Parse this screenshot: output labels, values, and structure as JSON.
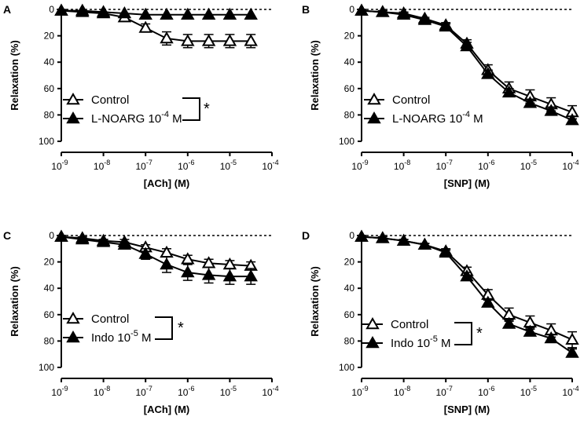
{
  "chart_data": [
    {
      "type": "line",
      "panel": "A",
      "xlabel": "[ACh] (M)",
      "ylabel": "Relaxation (%)",
      "xscale": "log",
      "xlim_exp": [
        -9,
        -4
      ],
      "ylim": [
        0,
        100
      ],
      "y_inverted": true,
      "yticks": [
        "0",
        "20",
        "40",
        "60",
        "80",
        "100"
      ],
      "xticks": [
        {
          "base": "10",
          "exp": "-9"
        },
        {
          "base": "10",
          "exp": "-8"
        },
        {
          "base": "10",
          "exp": "-7"
        },
        {
          "base": "10",
          "exp": "-6"
        },
        {
          "base": "10",
          "exp": "-5"
        },
        {
          "base": "10",
          "exp": "-4"
        }
      ],
      "x_log": [
        -9,
        -8.5,
        -8,
        -7.5,
        -7,
        -6.5,
        -6,
        -5.5,
        -5,
        -4.5
      ],
      "legend_position": "lower-left",
      "significance": "*",
      "series": [
        {
          "name": "Control",
          "name_parts": [
            "Control",
            "",
            ""
          ],
          "marker": "open-triangle",
          "values": [
            1,
            2,
            3,
            6,
            14,
            22,
            24,
            24,
            24,
            24
          ],
          "errors": [
            1,
            1,
            1,
            2,
            3,
            5,
            5,
            5,
            5,
            5
          ]
        },
        {
          "name": "L-NOARG 10-4 M",
          "name_parts": [
            "L-NOARG 10",
            "-4",
            " M"
          ],
          "marker": "filled-triangle",
          "values": [
            1,
            1,
            2,
            3,
            4,
            4,
            4,
            4,
            4,
            4
          ],
          "errors": [
            0.5,
            0.5,
            0.5,
            0.5,
            0.5,
            0.5,
            0.5,
            0.5,
            0.5,
            0.5
          ]
        }
      ]
    },
    {
      "type": "line",
      "panel": "B",
      "xlabel": "[SNP] (M)",
      "ylabel": "Relaxation (%)",
      "xscale": "log",
      "xlim_exp": [
        -9,
        -4
      ],
      "ylim": [
        0,
        100
      ],
      "y_inverted": true,
      "yticks": [
        "0",
        "20",
        "40",
        "60",
        "80",
        "100"
      ],
      "xticks": [
        {
          "base": "10",
          "exp": "-9"
        },
        {
          "base": "10",
          "exp": "-8"
        },
        {
          "base": "10",
          "exp": "-7"
        },
        {
          "base": "10",
          "exp": "-6"
        },
        {
          "base": "10",
          "exp": "-5"
        },
        {
          "base": "10",
          "exp": "-4"
        }
      ],
      "x_log": [
        -9,
        -8.5,
        -8,
        -7.5,
        -7,
        -6.5,
        -6,
        -5.5,
        -5,
        -4.5,
        -4
      ],
      "legend_position": "lower-left",
      "significance": "",
      "series": [
        {
          "name": "Control",
          "name_parts": [
            "Control",
            "",
            ""
          ],
          "marker": "open-triangle",
          "values": [
            1,
            2,
            3,
            7,
            12,
            26,
            46,
            60,
            66,
            72,
            78
          ],
          "errors": [
            1,
            1,
            1,
            1,
            2,
            3,
            4,
            5,
            5,
            5,
            5
          ]
        },
        {
          "name": "L-NOARG 10-4 M",
          "name_parts": [
            "L-NOARG 10",
            "-4",
            " M"
          ],
          "marker": "filled-triangle",
          "values": [
            1,
            2,
            4,
            8,
            13,
            28,
            49,
            63,
            71,
            77,
            84
          ],
          "errors": [
            1,
            1,
            1,
            1,
            2,
            3,
            3,
            3,
            3,
            3,
            3
          ]
        }
      ]
    },
    {
      "type": "line",
      "panel": "C",
      "xlabel": "[ACh] (M)",
      "ylabel": "Relaxation (%)",
      "xscale": "log",
      "xlim_exp": [
        -9,
        -4
      ],
      "ylim": [
        0,
        100
      ],
      "y_inverted": true,
      "yticks": [
        "0",
        "20",
        "40",
        "60",
        "80",
        "100"
      ],
      "xticks": [
        {
          "base": "10",
          "exp": "-9"
        },
        {
          "base": "10",
          "exp": "-8"
        },
        {
          "base": "10",
          "exp": "-7"
        },
        {
          "base": "10",
          "exp": "-6"
        },
        {
          "base": "10",
          "exp": "-5"
        },
        {
          "base": "10",
          "exp": "-4"
        }
      ],
      "x_log": [
        -9,
        -8.5,
        -8,
        -7.5,
        -7,
        -6.5,
        -6,
        -5.5,
        -5,
        -4.5
      ],
      "legend_position": "lower-left",
      "significance": "*",
      "series": [
        {
          "name": "Control",
          "name_parts": [
            "Control",
            "",
            ""
          ],
          "marker": "open-triangle",
          "values": [
            1,
            2,
            4,
            5,
            9,
            13,
            18,
            21,
            22,
            23
          ],
          "errors": [
            1,
            1,
            1,
            2,
            2,
            3,
            3,
            3,
            3,
            3
          ]
        },
        {
          "name": "Indo 10-5 M",
          "name_parts": [
            "Indo 10",
            "-5",
            " M"
          ],
          "marker": "filled-triangle",
          "values": [
            1,
            3,
            5,
            7,
            14,
            22,
            28,
            30,
            31,
            31
          ],
          "errors": [
            1,
            1,
            2,
            2,
            4,
            6,
            6,
            6,
            6,
            6
          ]
        }
      ]
    },
    {
      "type": "line",
      "panel": "D",
      "xlabel": "[SNP] (M)",
      "ylabel": "Relaxation (%)",
      "xscale": "log",
      "xlim_exp": [
        -9,
        -4
      ],
      "ylim": [
        0,
        100
      ],
      "y_inverted": true,
      "yticks": [
        "0",
        "20",
        "40",
        "60",
        "80",
        "100"
      ],
      "xticks": [
        {
          "base": "10",
          "exp": "-9"
        },
        {
          "base": "10",
          "exp": "-8"
        },
        {
          "base": "10",
          "exp": "-7"
        },
        {
          "base": "10",
          "exp": "-6"
        },
        {
          "base": "10",
          "exp": "-5"
        },
        {
          "base": "10",
          "exp": "-4"
        }
      ],
      "x_log": [
        -9,
        -8.5,
        -8,
        -7.5,
        -7,
        -6.5,
        -6,
        -5.5,
        -5,
        -4.5,
        -4
      ],
      "legend_position": "lower-left",
      "significance": "*",
      "series": [
        {
          "name": "Control",
          "name_parts": [
            "Control",
            "",
            ""
          ],
          "marker": "open-triangle",
          "values": [
            1,
            2,
            4,
            7,
            12,
            27,
            45,
            60,
            66,
            72,
            79
          ],
          "errors": [
            1,
            1,
            1,
            1,
            2,
            3,
            4,
            5,
            5,
            5,
            6
          ]
        },
        {
          "name": "Indo 10-5 M",
          "name_parts": [
            "Indo 10",
            "-5",
            " M"
          ],
          "marker": "filled-triangle",
          "values": [
            1,
            2,
            4,
            7,
            13,
            31,
            51,
            67,
            73,
            78,
            89
          ],
          "errors": [
            1,
            1,
            1,
            1,
            2,
            3,
            3,
            3,
            3,
            3,
            3
          ]
        }
      ]
    }
  ]
}
